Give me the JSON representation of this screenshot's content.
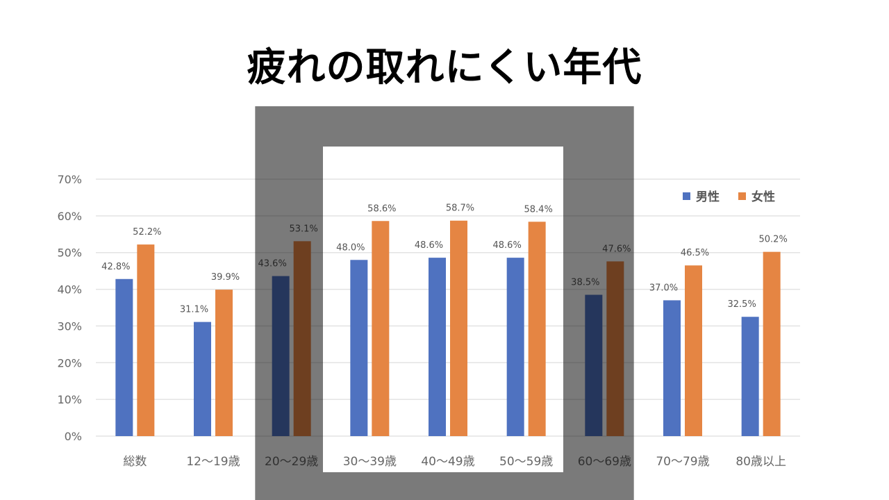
{
  "title": "疲れの取れにくい年代",
  "colors": {
    "male": "#4f72c0",
    "female": "#e58543",
    "grid": "#e3e3e3",
    "overlay": "#000000",
    "highlight": "#ffffff"
  },
  "chart_data": {
    "type": "bar",
    "title": "",
    "xlabel": "",
    "ylabel": "",
    "ylim": [
      0,
      70
    ],
    "yticks": [
      "0%",
      "10%",
      "20%",
      "30%",
      "40%",
      "50%",
      "60%",
      "70%"
    ],
    "grid": true,
    "legend_position": "top-right",
    "categories": [
      "総数",
      "12～19歳",
      "20～29歳",
      "30～39歳",
      "40～49歳",
      "50～59歳",
      "60～69歳",
      "70～79歳",
      "80歳以上"
    ],
    "series": [
      {
        "name": "男性",
        "values": [
          42.8,
          31.1,
          43.6,
          48.0,
          48.6,
          48.6,
          38.5,
          37.0,
          32.5
        ],
        "labels": [
          "42.8%",
          "31.1%",
          "43.6%",
          "48.0%",
          "48.6%",
          "48.6%",
          "38.5%",
          "37.0%",
          "32.5%"
        ]
      },
      {
        "name": "女性",
        "values": [
          52.2,
          39.9,
          53.1,
          58.6,
          58.7,
          58.4,
          47.6,
          46.5,
          50.2
        ],
        "labels": [
          "52.2%",
          "39.9%",
          "53.1%",
          "58.6%",
          "58.7%",
          "58.4%",
          "47.6%",
          "46.5%",
          "50.2%"
        ]
      }
    ],
    "highlighted_categories": [
      "30～39歳",
      "40～49歳",
      "50～59歳"
    ],
    "dimmed_categories": [
      "20～29歳",
      "60～69歳"
    ]
  }
}
